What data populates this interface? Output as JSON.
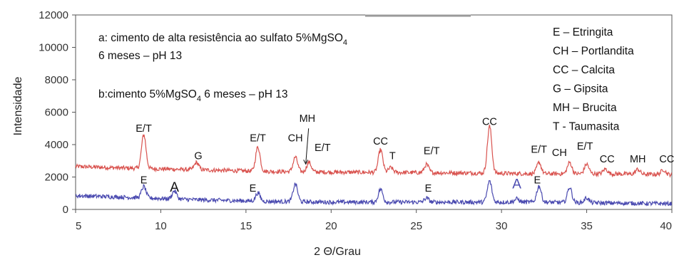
{
  "chart_data": {
    "type": "line",
    "xlabel": "2 Θ/Grau",
    "ylabel": "Intensidade",
    "xlim": [
      5,
      40
    ],
    "ylim": [
      0,
      12000
    ],
    "x_ticks": [
      "5",
      "10",
      "15",
      "20",
      "25",
      "30",
      "35",
      "40"
    ],
    "y_ticks": [
      "0",
      "2000",
      "4000",
      "6000",
      "8000",
      "10000",
      "12000"
    ],
    "grid": false,
    "notes": {
      "a_line1_main": "a: cimento de alta resistência ao sulfato 5%MgSO",
      "a_line1_sub": "4",
      "a_line2": "6 meses – pH 13",
      "b_main": "b:cimento 5%MgSO",
      "b_sub": "4",
      "b_rest": " 6 meses – pH 13"
    },
    "legend": [
      "E – Etringita",
      "CH – Portlandita",
      "CC – Calcita",
      "G – Gipsita",
      "MH – Brucita",
      "T - Taumasita"
    ],
    "series": [
      {
        "color": "#d9534f",
        "baseline": [
          [
            5,
            2650
          ],
          [
            8,
            2550
          ],
          [
            12,
            2450
          ],
          [
            16,
            2350
          ],
          [
            20,
            2300
          ],
          [
            24,
            2280
          ],
          [
            28,
            2250
          ],
          [
            32,
            2200
          ],
          [
            36,
            2200
          ],
          [
            40,
            2150
          ]
        ],
        "peaks": [
          [
            9.0,
            2100
          ],
          [
            12.1,
            450
          ],
          [
            15.7,
            1500
          ],
          [
            17.9,
            900
          ],
          [
            18.7,
            600
          ],
          [
            22.9,
            1400
          ],
          [
            23.5,
            300
          ],
          [
            25.6,
            500
          ],
          [
            29.3,
            2900
          ],
          [
            32.2,
            700
          ],
          [
            34.0,
            700
          ],
          [
            35.0,
            600
          ],
          [
            36.1,
            300
          ],
          [
            38.0,
            300
          ],
          [
            39.5,
            300
          ]
        ]
      },
      {
        "color": "#4a4ab0",
        "baseline": [
          [
            5,
            850
          ],
          [
            8,
            750
          ],
          [
            12,
            600
          ],
          [
            16,
            500
          ],
          [
            20,
            450
          ],
          [
            24,
            450
          ],
          [
            28,
            450
          ],
          [
            32,
            450
          ],
          [
            36,
            400
          ],
          [
            40,
            350
          ]
        ],
        "peaks": [
          [
            9.0,
            700
          ],
          [
            10.8,
            500
          ],
          [
            15.7,
            500
          ],
          [
            17.9,
            1100
          ],
          [
            22.9,
            800
          ],
          [
            25.6,
            250
          ],
          [
            29.3,
            1300
          ],
          [
            30.9,
            200
          ],
          [
            32.2,
            1000
          ],
          [
            34.0,
            950
          ],
          [
            35.0,
            300
          ]
        ]
      }
    ],
    "peak_labels": [
      {
        "text": "E/T",
        "x": 9.0,
        "y": 4800
      },
      {
        "text": "G",
        "x": 12.2,
        "y": 3100
      },
      {
        "text": "E/T",
        "x": 15.7,
        "y": 4200
      },
      {
        "text": "CH",
        "x": 17.9,
        "y": 4200
      },
      {
        "text": "MH",
        "x": 18.6,
        "y": 5400
      },
      {
        "text": "E/T",
        "x": 19.5,
        "y": 3600
      },
      {
        "text": "CC",
        "x": 22.9,
        "y": 4000
      },
      {
        "text": "T",
        "x": 23.6,
        "y": 3100
      },
      {
        "text": "E/T",
        "x": 25.9,
        "y": 3400
      },
      {
        "text": "CC",
        "x": 29.3,
        "y": 5200
      },
      {
        "text": "E/T",
        "x": 32.2,
        "y": 3500
      },
      {
        "text": "CH",
        "x": 33.4,
        "y": 3300
      },
      {
        "text": "E/T",
        "x": 34.9,
        "y": 3700
      },
      {
        "text": "CC",
        "x": 36.2,
        "y": 2900
      },
      {
        "text": "MH",
        "x": 38.0,
        "y": 2900
      },
      {
        "text": "CC",
        "x": 39.7,
        "y": 2900
      },
      {
        "text": "E",
        "x": 9.0,
        "y": 1600
      },
      {
        "text": "A",
        "x": 10.8,
        "y": 1100,
        "big": true
      },
      {
        "text": "E",
        "x": 15.4,
        "y": 1100
      },
      {
        "text": "E",
        "x": 25.7,
        "y": 1100
      },
      {
        "text": "A",
        "x": 30.9,
        "y": 1300,
        "big": true,
        "color": "#4a4ab0"
      },
      {
        "text": "E",
        "x": 32.1,
        "y": 1600
      }
    ]
  }
}
